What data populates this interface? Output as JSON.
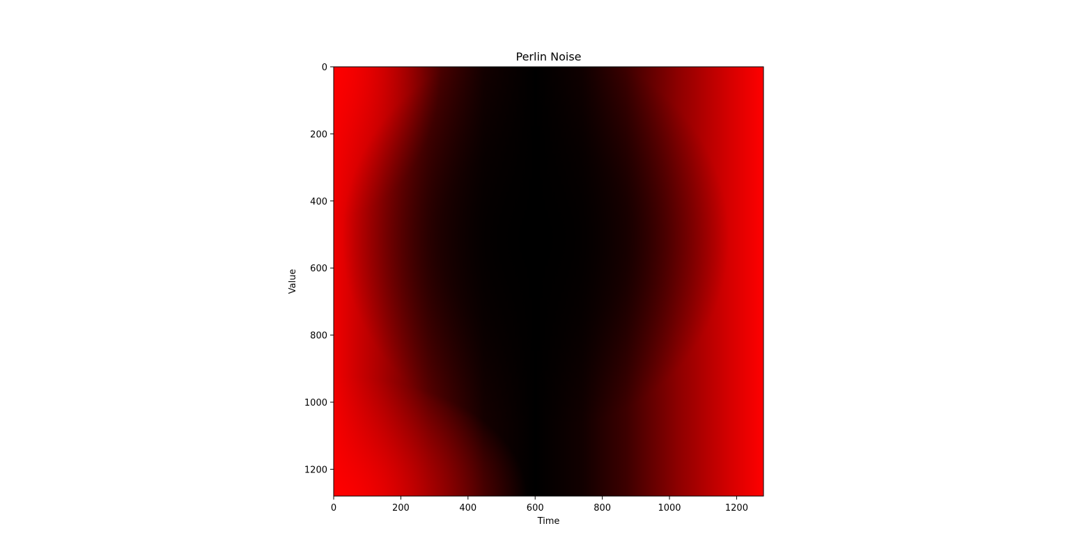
{
  "chart_data": {
    "type": "heatmap",
    "title": "Perlin Noise",
    "xlabel": "Time",
    "ylabel": "Value",
    "xlim": [
      0,
      1280
    ],
    "ylim": [
      1280,
      0
    ],
    "y_inverted": true,
    "xticks": [
      0,
      200,
      400,
      600,
      800,
      1000,
      1200
    ],
    "yticks": [
      0,
      200,
      400,
      600,
      800,
      1000,
      1200
    ],
    "grid": false,
    "colormap": {
      "low": "#000000",
      "high": "#ff0000"
    },
    "description_values": {
      "darkest_region_center": {
        "x": 600,
        "y": 500
      },
      "brightest_regions": [
        "left edge top/bottom corners",
        "right edge"
      ]
    }
  }
}
